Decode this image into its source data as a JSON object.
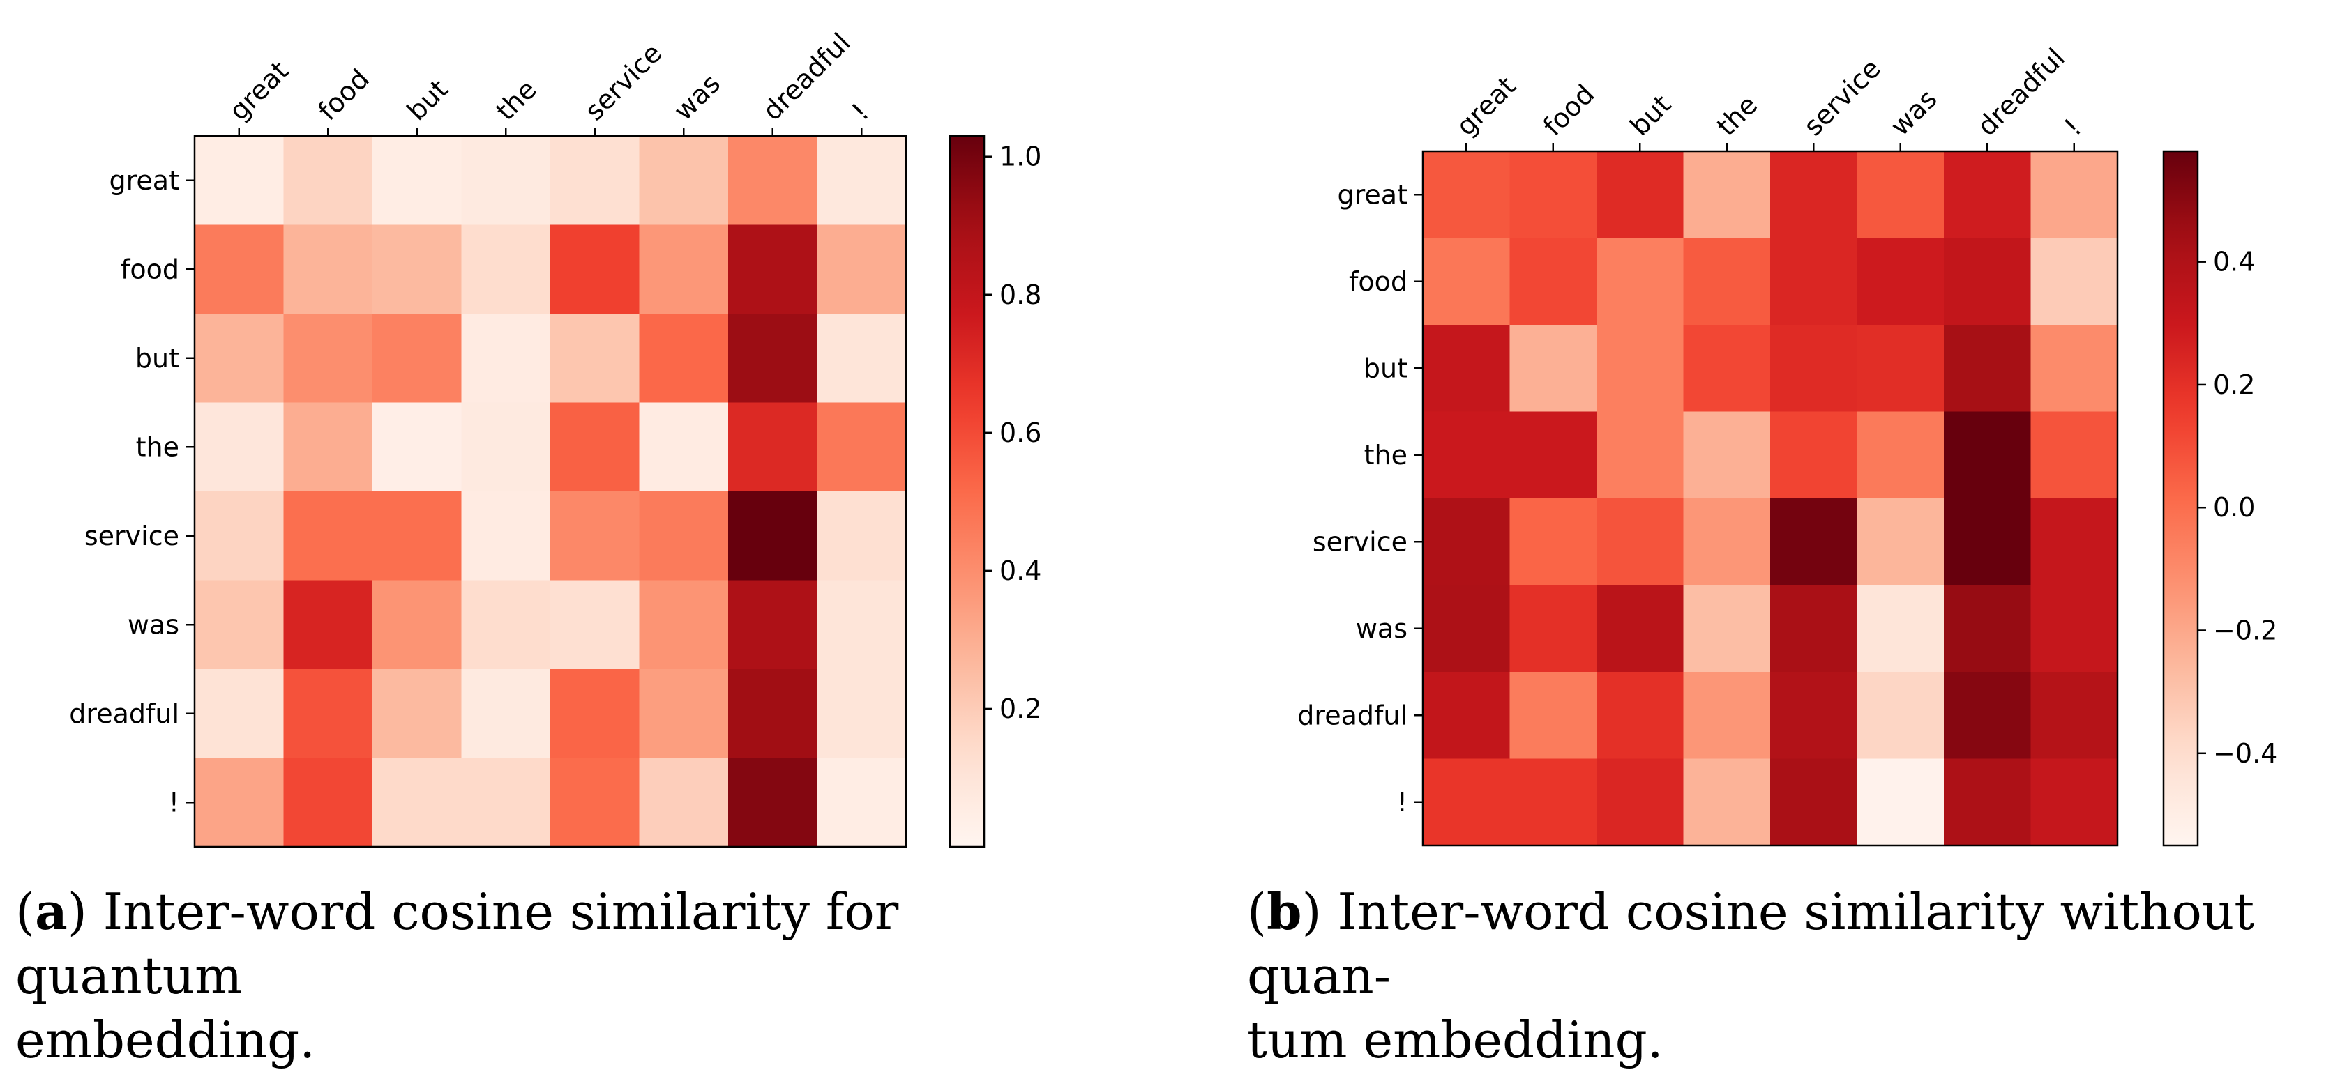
{
  "captions": {
    "a": {
      "open": "(",
      "letter": "a",
      "close": ")",
      "line1": " Inter-word cosine similarity for quantum",
      "line2": "embedding."
    },
    "b": {
      "open": "(",
      "letter": "b",
      "close": ")",
      "line1": " Inter-word cosine similarity without quan-",
      "line2": "tum embedding."
    }
  },
  "chart_data": [
    {
      "type": "heatmap",
      "colormap": "Reds",
      "title": "Inter-word cosine similarity for quantum embedding.",
      "x_labels": [
        "great",
        "food",
        "but",
        "the",
        "service",
        "was",
        "dreadful",
        "!"
      ],
      "y_labels": [
        "great",
        "food",
        "but",
        "the",
        "service",
        "was",
        "dreadful",
        "!"
      ],
      "vmin": 0.0,
      "vmax": 1.03,
      "colorbar_ticks": [
        0.2,
        0.4,
        0.6,
        0.8,
        1.0
      ],
      "colorbar_tick_labels": [
        "0.2",
        "0.4",
        "0.6",
        "0.8",
        "1.0"
      ],
      "values": [
        [
          0.05,
          0.17,
          0.05,
          0.07,
          0.13,
          0.23,
          0.42,
          0.08
        ],
        [
          0.46,
          0.28,
          0.26,
          0.14,
          0.63,
          0.37,
          0.87,
          0.3
        ],
        [
          0.28,
          0.4,
          0.44,
          0.06,
          0.22,
          0.52,
          0.92,
          0.1
        ],
        [
          0.09,
          0.3,
          0.04,
          0.07,
          0.54,
          0.06,
          0.71,
          0.47
        ],
        [
          0.17,
          0.5,
          0.5,
          0.06,
          0.42,
          0.46,
          1.03,
          0.13
        ],
        [
          0.22,
          0.73,
          0.38,
          0.14,
          0.13,
          0.38,
          0.87,
          0.1
        ],
        [
          0.11,
          0.58,
          0.26,
          0.07,
          0.53,
          0.35,
          0.91,
          0.1
        ],
        [
          0.33,
          0.61,
          0.15,
          0.15,
          0.51,
          0.19,
          0.97,
          0.05
        ]
      ]
    },
    {
      "type": "heatmap",
      "colormap": "Reds",
      "title": "Inter-word cosine similarity without quantum embedding.",
      "x_labels": [
        "great",
        "food",
        "but",
        "the",
        "service",
        "was",
        "dreadful",
        "!"
      ],
      "y_labels": [
        "great",
        "food",
        "but",
        "the",
        "service",
        "was",
        "dreadful",
        "!"
      ],
      "vmin": -0.55,
      "vmax": 0.58,
      "colorbar_ticks": [
        -0.4,
        -0.2,
        0.0,
        0.2,
        0.4
      ],
      "colorbar_tick_labels": [
        "−0.4",
        "−0.2",
        "0.0",
        "0.2",
        "0.4"
      ],
      "values": [
        [
          0.07,
          0.1,
          0.22,
          -0.22,
          0.24,
          0.07,
          0.28,
          -0.2
        ],
        [
          -0.03,
          0.12,
          -0.06,
          0.06,
          0.24,
          0.29,
          0.33,
          -0.33
        ],
        [
          0.32,
          -0.23,
          -0.06,
          0.12,
          0.22,
          0.21,
          0.43,
          -0.1
        ],
        [
          0.3,
          0.3,
          -0.06,
          -0.23,
          0.13,
          -0.04,
          0.58,
          0.08
        ],
        [
          0.4,
          0.03,
          0.08,
          -0.14,
          0.55,
          -0.25,
          0.58,
          0.32
        ],
        [
          0.41,
          0.2,
          0.36,
          -0.28,
          0.42,
          -0.44,
          0.47,
          0.32
        ],
        [
          0.33,
          -0.05,
          0.2,
          -0.14,
          0.39,
          -0.37,
          0.51,
          0.38
        ],
        [
          0.18,
          0.18,
          0.24,
          -0.24,
          0.42,
          -0.53,
          0.41,
          0.32
        ]
      ]
    }
  ]
}
